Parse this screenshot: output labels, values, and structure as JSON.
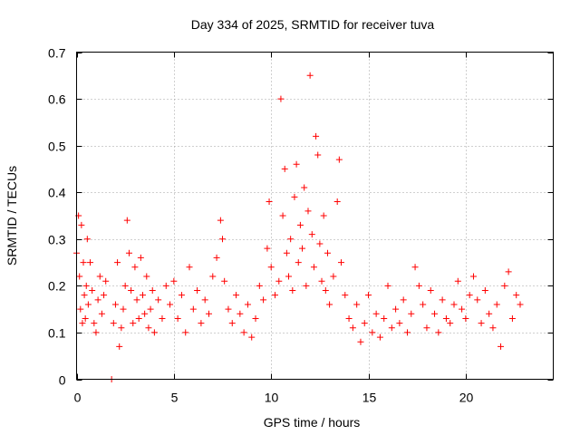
{
  "chart_data": {
    "type": "scatter",
    "title": "Day 334 of 2025, SRMTID for receiver tuva",
    "xlabel": "GPS time / hours",
    "ylabel": "SRMTID / TECUs",
    "xlim": [
      0,
      24.5
    ],
    "ylim": [
      0,
      0.7
    ],
    "x_ticks": [
      0,
      5,
      10,
      15,
      20
    ],
    "x_tick_labels": [
      "0",
      "5",
      "10",
      "15",
      "20"
    ],
    "y_ticks": [
      0,
      0.1,
      0.2,
      0.3,
      0.4,
      0.5,
      0.6,
      0.7
    ],
    "y_tick_labels": [
      "0",
      "0.1",
      "0.2",
      "0.3",
      "0.4",
      "0.5",
      "0.6",
      "0.7"
    ],
    "grid": true,
    "marker": "+",
    "series": [
      {
        "name": "SRMTID",
        "color": "#ff0000",
        "x": [
          0.0,
          0.1,
          0.15,
          0.2,
          0.25,
          0.3,
          0.35,
          0.4,
          0.45,
          0.5,
          0.55,
          0.6,
          0.7,
          0.8,
          0.9,
          1.0,
          1.1,
          1.2,
          1.3,
          1.4,
          1.5,
          1.8,
          1.9,
          2.0,
          2.1,
          2.2,
          2.3,
          2.4,
          2.5,
          2.6,
          2.7,
          2.8,
          2.9,
          3.0,
          3.1,
          3.2,
          3.3,
          3.4,
          3.5,
          3.6,
          3.7,
          3.8,
          3.9,
          4.0,
          4.2,
          4.4,
          4.6,
          4.8,
          5.0,
          5.2,
          5.4,
          5.6,
          5.8,
          6.0,
          6.2,
          6.4,
          6.6,
          6.8,
          7.0,
          7.2,
          7.4,
          7.5,
          7.6,
          7.8,
          8.0,
          8.2,
          8.4,
          8.6,
          8.8,
          9.0,
          9.2,
          9.4,
          9.6,
          9.8,
          9.9,
          10.0,
          10.2,
          10.4,
          10.5,
          10.6,
          10.7,
          10.8,
          10.9,
          11.0,
          11.1,
          11.2,
          11.3,
          11.4,
          11.5,
          11.6,
          11.7,
          11.8,
          11.9,
          12.0,
          12.1,
          12.2,
          12.3,
          12.4,
          12.5,
          12.6,
          12.7,
          12.8,
          12.9,
          13.0,
          13.2,
          13.4,
          13.5,
          13.6,
          13.8,
          14.0,
          14.2,
          14.4,
          14.6,
          14.8,
          15.0,
          15.2,
          15.4,
          15.6,
          15.8,
          16.0,
          16.2,
          16.4,
          16.6,
          16.8,
          17.0,
          17.2,
          17.4,
          17.6,
          17.8,
          18.0,
          18.2,
          18.4,
          18.6,
          18.8,
          19.0,
          19.2,
          19.4,
          19.6,
          19.8,
          20.0,
          20.2,
          20.4,
          20.6,
          20.8,
          21.0,
          21.2,
          21.4,
          21.6,
          21.8,
          22.0,
          22.2,
          22.4,
          22.6,
          22.8
        ],
        "y": [
          0.27,
          0.35,
          0.22,
          0.15,
          0.33,
          0.12,
          0.25,
          0.18,
          0.13,
          0.2,
          0.3,
          0.16,
          0.25,
          0.19,
          0.12,
          0.1,
          0.17,
          0.22,
          0.14,
          0.18,
          0.21,
          0.0,
          0.12,
          0.16,
          0.25,
          0.07,
          0.11,
          0.15,
          0.2,
          0.34,
          0.27,
          0.19,
          0.12,
          0.24,
          0.17,
          0.13,
          0.26,
          0.18,
          0.14,
          0.22,
          0.11,
          0.15,
          0.19,
          0.1,
          0.17,
          0.13,
          0.2,
          0.16,
          0.21,
          0.13,
          0.18,
          0.1,
          0.24,
          0.15,
          0.19,
          0.12,
          0.17,
          0.14,
          0.22,
          0.26,
          0.34,
          0.3,
          0.21,
          0.15,
          0.12,
          0.18,
          0.14,
          0.1,
          0.16,
          0.09,
          0.13,
          0.2,
          0.17,
          0.28,
          0.38,
          0.24,
          0.18,
          0.21,
          0.6,
          0.35,
          0.45,
          0.27,
          0.22,
          0.3,
          0.19,
          0.39,
          0.46,
          0.25,
          0.33,
          0.28,
          0.41,
          0.2,
          0.36,
          0.65,
          0.31,
          0.24,
          0.52,
          0.48,
          0.29,
          0.21,
          0.35,
          0.19,
          0.27,
          0.16,
          0.22,
          0.38,
          0.47,
          0.25,
          0.18,
          0.13,
          0.11,
          0.16,
          0.08,
          0.12,
          0.18,
          0.1,
          0.14,
          0.09,
          0.13,
          0.2,
          0.11,
          0.15,
          0.12,
          0.17,
          0.1,
          0.14,
          0.24,
          0.2,
          0.16,
          0.11,
          0.19,
          0.14,
          0.1,
          0.17,
          0.13,
          0.12,
          0.16,
          0.21,
          0.15,
          0.13,
          0.18,
          0.22,
          0.17,
          0.12,
          0.19,
          0.14,
          0.11,
          0.16,
          0.07,
          0.2,
          0.23,
          0.13,
          0.18,
          0.16
        ]
      }
    ]
  }
}
